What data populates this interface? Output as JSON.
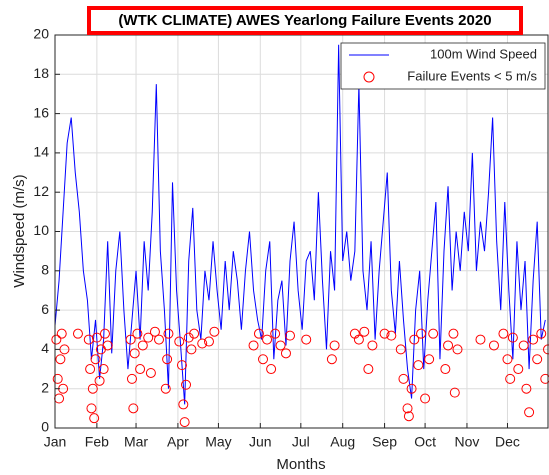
{
  "chart_data": {
    "type": "line",
    "title": "(WTK CLIMATE) AWES Yearlong Failure Events 2020",
    "xlabel": "Months",
    "ylabel": "Windspeed (m/s)",
    "xlim": [
      1,
      366
    ],
    "xticks": [
      {
        "value": 1,
        "label": "Jan"
      },
      {
        "value": 32,
        "label": "Feb"
      },
      {
        "value": 61,
        "label": "Mar"
      },
      {
        "value": 92,
        "label": "Apr"
      },
      {
        "value": 122,
        "label": "May"
      },
      {
        "value": 153,
        "label": "Jun"
      },
      {
        "value": 183,
        "label": "Jul"
      },
      {
        "value": 214,
        "label": "Aug"
      },
      {
        "value": 245,
        "label": "Sep"
      },
      {
        "value": 275,
        "label": "Oct"
      },
      {
        "value": 306,
        "label": "Nov"
      },
      {
        "value": 336,
        "label": "Dec"
      }
    ],
    "ylim": [
      0,
      20
    ],
    "yticks": [
      0,
      2,
      4,
      6,
      8,
      10,
      12,
      14,
      16,
      18,
      20
    ],
    "grid": true,
    "legend": "upper right",
    "series": [
      {
        "name": "100m Wind Speed",
        "color": "#0000ff",
        "marker": "line",
        "x": [
          1,
          4,
          7,
          10,
          13,
          16,
          19,
          22,
          25,
          28,
          31,
          34,
          37,
          40,
          43,
          46,
          49,
          52,
          55,
          58,
          61,
          64,
          67,
          70,
          73,
          76,
          79,
          82,
          85,
          88,
          91,
          94,
          97,
          100,
          103,
          106,
          109,
          112,
          115,
          118,
          121,
          124,
          127,
          130,
          133,
          136,
          139,
          142,
          145,
          148,
          151,
          154,
          157,
          160,
          163,
          166,
          169,
          172,
          175,
          178,
          181,
          184,
          187,
          190,
          193,
          196,
          199,
          202,
          205,
          208,
          211,
          214,
          217,
          220,
          223,
          226,
          229,
          232,
          235,
          238,
          241,
          244,
          247,
          250,
          253,
          256,
          259,
          262,
          265,
          268,
          271,
          274,
          277,
          280,
          283,
          286,
          289,
          292,
          295,
          298,
          301,
          304,
          307,
          310,
          313,
          316,
          319,
          322,
          325,
          328,
          331,
          334,
          337,
          340,
          343,
          346,
          349,
          352,
          355,
          358,
          361,
          364
        ],
        "values": [
          5.2,
          7.5,
          11,
          14.5,
          15.8,
          13,
          11,
          8,
          6.5,
          3.5,
          5.5,
          2.5,
          4.5,
          9.5,
          3.8,
          8,
          10,
          6,
          3,
          5.5,
          8,
          4.5,
          9.5,
          7,
          11,
          17.5,
          9,
          6,
          2,
          12.5,
          7,
          4.2,
          1.2,
          8.5,
          11.2,
          6,
          4.5,
          8,
          6.5,
          9.5,
          7,
          5,
          8.5,
          6,
          9,
          7.5,
          5,
          8,
          10,
          7,
          5.5,
          4.5,
          8,
          9.5,
          3.5,
          6.5,
          7.5,
          4.2,
          8.5,
          10.5,
          7,
          5,
          8.5,
          9,
          6.5,
          12,
          7.5,
          4,
          9,
          7,
          19.5,
          8.5,
          10,
          7.5,
          9,
          17.5,
          8,
          6,
          9.5,
          4.5,
          8,
          10.5,
          13,
          7,
          4.8,
          8.5,
          5.5,
          3,
          1.5,
          6,
          8,
          3,
          6.5,
          9,
          11.5,
          3.5,
          9,
          12.3,
          7,
          10,
          8,
          11,
          9,
          14,
          8,
          10.5,
          9,
          12,
          15.8,
          9.5,
          6,
          11.5,
          7,
          3.5,
          9.5,
          6,
          8.5,
          3,
          7.5,
          10.5,
          4.5,
          5.5
        ]
      },
      {
        "name": "Failure Events < 5 m/s",
        "color": "#ff0000",
        "marker": "circle",
        "x": [
          2,
          3,
          4,
          5,
          6,
          7,
          8,
          18,
          26,
          27,
          28,
          29,
          30,
          31,
          32,
          34,
          35,
          37,
          38,
          40,
          57,
          58,
          59,
          60,
          62,
          64,
          66,
          70,
          72,
          75,
          78,
          83,
          84,
          85,
          93,
          95,
          96,
          97,
          98,
          100,
          102,
          104,
          110,
          115,
          119,
          148,
          152,
          155,
          158,
          161,
          164,
          168,
          172,
          175,
          187,
          206,
          208,
          223,
          226,
          230,
          233,
          236,
          245,
          250,
          257,
          259,
          262,
          263,
          265,
          267,
          270,
          272,
          275,
          278,
          281,
          290,
          292,
          296,
          297,
          299,
          316,
          326,
          333,
          336,
          338,
          340,
          344,
          348,
          350,
          352,
          355,
          358,
          361,
          364,
          366
        ],
        "values": [
          4.5,
          2.5,
          1.5,
          3.5,
          4.8,
          2,
          4,
          4.8,
          4.5,
          3,
          1,
          2,
          0.5,
          3.5,
          4.6,
          2.4,
          4,
          3,
          4.8,
          4.2,
          4.5,
          2.5,
          1,
          3.8,
          4.8,
          3,
          4.2,
          4.6,
          2.8,
          4.9,
          4.5,
          2,
          3.5,
          4.8,
          4.4,
          3.2,
          1.2,
          0.3,
          2.2,
          4.6,
          4,
          4.8,
          4.3,
          4.4,
          4.9,
          4.2,
          4.8,
          3.5,
          4.5,
          3,
          4.8,
          4.2,
          3.8,
          4.7,
          4.5,
          3.5,
          4.2,
          4.8,
          4.5,
          4.9,
          3,
          4.2,
          4.8,
          4.7,
          4,
          2.5,
          1,
          0.6,
          2,
          4.5,
          3.2,
          4.8,
          1.5,
          3.5,
          4.8,
          3,
          4.2,
          4.8,
          1.8,
          4,
          4.5,
          4.2,
          4.8,
          3.5,
          2.5,
          4.6,
          3,
          4.2,
          2,
          0.8,
          4.5,
          3.5,
          4.8,
          2.5,
          4
        ]
      }
    ]
  }
}
